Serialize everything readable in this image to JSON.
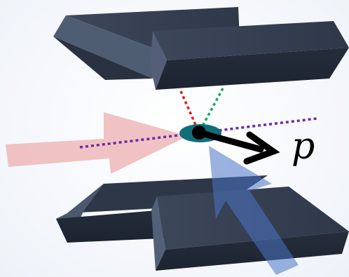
{
  "labels": {
    "momentum": "p"
  },
  "colors": {
    "block_top": "#3a4456",
    "block_front": "#222a38",
    "block_side": "#4d5b70",
    "block_edge": "#1a212c",
    "incoming_beam_red": "#eeb9bb",
    "incoming_beam_blue": "#4a75c4",
    "focus_line_red": "#e02020",
    "focus_line_green": "#18a860",
    "beam_axis_purple": "#6a2aa8",
    "trapped_ion": "#0f6f78",
    "momentum_vector": "#000000"
  },
  "icons": {
    "ion": "filled-circle-on-ellipse",
    "momentum": "right-pointing-arrow"
  }
}
